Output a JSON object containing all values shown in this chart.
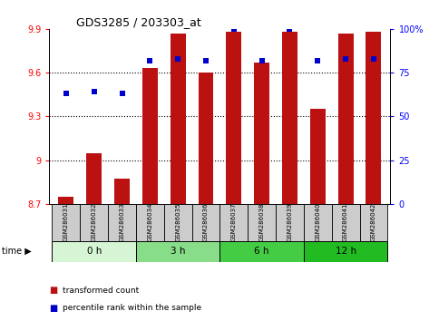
{
  "title": "GDS3285 / 203303_at",
  "samples": [
    "GSM286031",
    "GSM286032",
    "GSM286033",
    "GSM286034",
    "GSM286035",
    "GSM286036",
    "GSM286037",
    "GSM286038",
    "GSM286039",
    "GSM286040",
    "GSM286041",
    "GSM286042"
  ],
  "bar_values": [
    8.75,
    9.05,
    8.87,
    9.63,
    9.87,
    9.6,
    9.88,
    9.67,
    9.88,
    9.35,
    9.87,
    9.88
  ],
  "percentile_values": [
    63,
    64,
    63,
    82,
    83,
    82,
    100,
    82,
    100,
    82,
    83,
    83
  ],
  "bar_bottom": 8.7,
  "ylim_left": [
    8.7,
    9.9
  ],
  "ylim_right": [
    0,
    100
  ],
  "yticks_left": [
    8.7,
    9.0,
    9.3,
    9.6,
    9.9
  ],
  "yticks_right": [
    0,
    25,
    50,
    75,
    100
  ],
  "ytick_labels_left": [
    "8.7",
    "9",
    "9.3",
    "9.6",
    "9.9"
  ],
  "ytick_labels_right": [
    "0",
    "25",
    "50",
    "75",
    "100%"
  ],
  "groups": [
    {
      "label": "0 h",
      "start": 0,
      "end": 3,
      "color": "#d5f5d5"
    },
    {
      "label": "3 h",
      "start": 3,
      "end": 6,
      "color": "#88dd88"
    },
    {
      "label": "6 h",
      "start": 6,
      "end": 9,
      "color": "#44cc44"
    },
    {
      "label": "12 h",
      "start": 9,
      "end": 12,
      "color": "#22bb22"
    }
  ],
  "bar_color": "#bb1111",
  "percentile_color": "#0000cc",
  "grid_color": "black",
  "bg_color": "#ffffff",
  "tick_label_bg": "#cccccc",
  "legend_label_bar": "transformed count",
  "legend_label_pct": "percentile rank within the sample",
  "time_label": "time"
}
